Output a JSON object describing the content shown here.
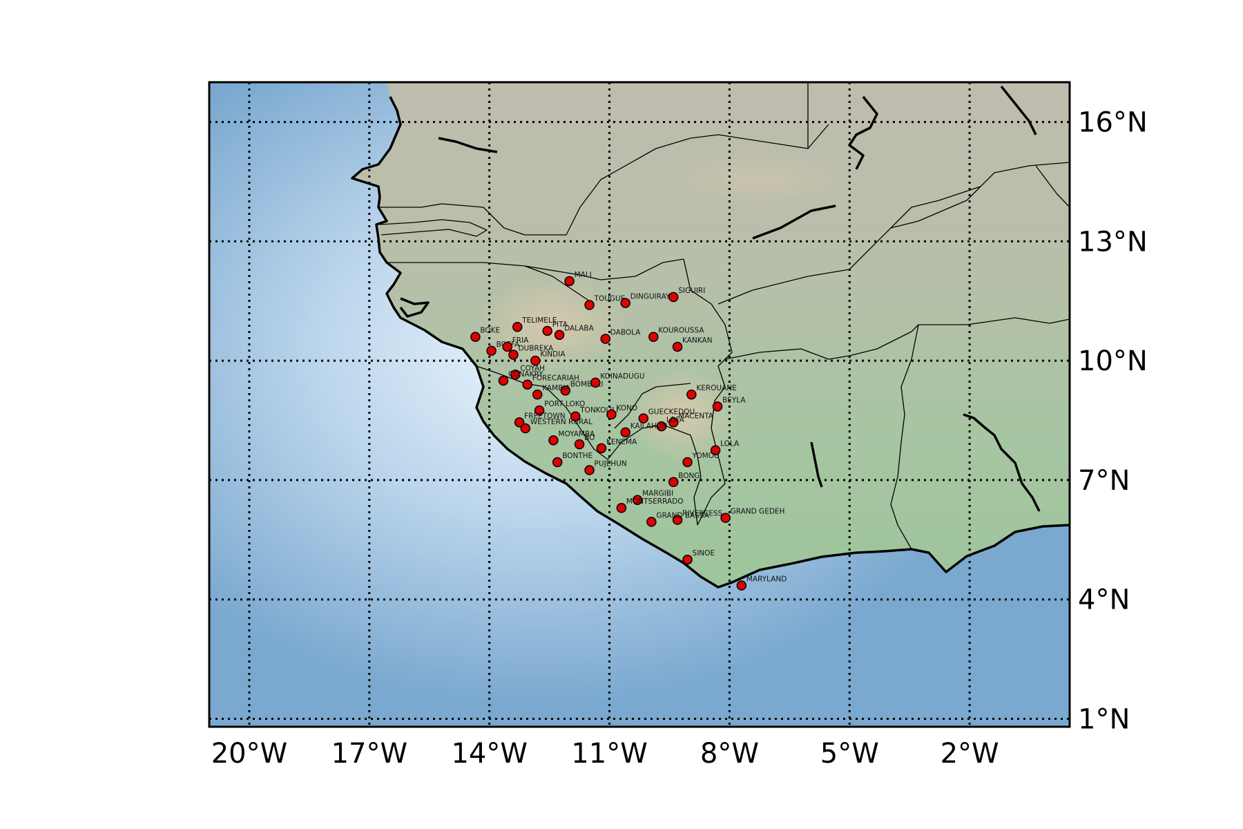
{
  "map": {
    "lon_range": [
      -21,
      0.5
    ],
    "lat_range": [
      0.8,
      17
    ],
    "meridians": [
      -20,
      -17,
      -14,
      -11,
      -8,
      -5,
      -2
    ],
    "parallels": [
      1,
      4,
      7,
      10,
      13,
      16
    ],
    "x_tick_labels": [
      "20°W",
      "17°W",
      "14°W",
      "11°W",
      "8°W",
      "5°W",
      "2°W"
    ],
    "y_tick_labels": [
      "1°N",
      "4°N",
      "7°N",
      "10°N",
      "13°N",
      "16°N"
    ],
    "colors": {
      "ocean": "#7aa8cf",
      "ocean_light": "#e4eff9",
      "land_low": "#a9c7a1",
      "land_high": "#c9baa3",
      "marker": "#e00000"
    }
  },
  "places": [
    {
      "name": "MALI",
      "lon": -12.0,
      "lat": 12.0
    },
    {
      "name": "TOUGUE",
      "lon": -11.5,
      "lat": 11.4
    },
    {
      "name": "DINGUIRAYE",
      "lon": -10.6,
      "lat": 11.45
    },
    {
      "name": "SIGUIRI",
      "lon": -9.4,
      "lat": 11.6
    },
    {
      "name": "TELIMELE",
      "lon": -13.3,
      "lat": 10.85
    },
    {
      "name": "PITA",
      "lon": -12.55,
      "lat": 10.75
    },
    {
      "name": "DALABA",
      "lon": -12.25,
      "lat": 10.65
    },
    {
      "name": "DABOLA",
      "lon": -11.1,
      "lat": 10.55
    },
    {
      "name": "KOUROUSSA",
      "lon": -9.9,
      "lat": 10.6
    },
    {
      "name": "KANKAN",
      "lon": -9.3,
      "lat": 10.35
    },
    {
      "name": "BOKE",
      "lon": -14.35,
      "lat": 10.6
    },
    {
      "name": "BOFFA",
      "lon": -13.95,
      "lat": 10.25
    },
    {
      "name": "FRIA",
      "lon": -13.55,
      "lat": 10.35
    },
    {
      "name": "DUBREKA",
      "lon": -13.4,
      "lat": 10.15
    },
    {
      "name": "KINDIA",
      "lon": -12.85,
      "lat": 10.0
    },
    {
      "name": "COYAH",
      "lon": -13.35,
      "lat": 9.65
    },
    {
      "name": "CONAKRY",
      "lon": -13.65,
      "lat": 9.5
    },
    {
      "name": "FORECARIAH",
      "lon": -13.05,
      "lat": 9.4
    },
    {
      "name": "BOMBALI",
      "lon": -12.1,
      "lat": 9.25
    },
    {
      "name": "KAMBIA",
      "lon": -12.8,
      "lat": 9.15
    },
    {
      "name": "KOINADUGU",
      "lon": -11.35,
      "lat": 9.45
    },
    {
      "name": "KEROUANE",
      "lon": -8.95,
      "lat": 9.15
    },
    {
      "name": "BEYLA",
      "lon": -8.3,
      "lat": 8.85
    },
    {
      "name": "PORT LOKO",
      "lon": -12.75,
      "lat": 8.75
    },
    {
      "name": "TONKOLILI",
      "lon": -11.85,
      "lat": 8.6
    },
    {
      "name": "KONO",
      "lon": -10.95,
      "lat": 8.65
    },
    {
      "name": "GUECKEDOU",
      "lon": -10.15,
      "lat": 8.55
    },
    {
      "name": "MACENTA",
      "lon": -9.4,
      "lat": 8.45
    },
    {
      "name": "LOFA",
      "lon": -9.7,
      "lat": 8.35
    },
    {
      "name": "KAILAHUN",
      "lon": -10.6,
      "lat": 8.2
    },
    {
      "name": "FREETOWN",
      "lon": -13.25,
      "lat": 8.45
    },
    {
      "name": "WESTERN RURAL",
      "lon": -13.1,
      "lat": 8.3
    },
    {
      "name": "MOYAMBA",
      "lon": -12.4,
      "lat": 8.0
    },
    {
      "name": "BO",
      "lon": -11.75,
      "lat": 7.9
    },
    {
      "name": "KENEMA",
      "lon": -11.2,
      "lat": 7.8
    },
    {
      "name": "LOLA",
      "lon": -8.35,
      "lat": 7.75
    },
    {
      "name": "YOMOU",
      "lon": -9.05,
      "lat": 7.45
    },
    {
      "name": "BONTHE",
      "lon": -12.3,
      "lat": 7.45
    },
    {
      "name": "PUJEHUN",
      "lon": -11.5,
      "lat": 7.25
    },
    {
      "name": "BONG",
      "lon": -9.4,
      "lat": 6.95
    },
    {
      "name": "MARGIBI",
      "lon": -10.3,
      "lat": 6.5
    },
    {
      "name": "MONTSERRADO",
      "lon": -10.7,
      "lat": 6.3
    },
    {
      "name": "RIVERCESS",
      "lon": -9.3,
      "lat": 6.0
    },
    {
      "name": "GRAND BASSA",
      "lon": -9.95,
      "lat": 5.95
    },
    {
      "name": "GRAND GEDEH",
      "lon": -8.1,
      "lat": 6.05
    },
    {
      "name": "SINOE",
      "lon": -9.05,
      "lat": 5.0
    },
    {
      "name": "MARYLAND",
      "lon": -7.7,
      "lat": 4.35
    }
  ]
}
